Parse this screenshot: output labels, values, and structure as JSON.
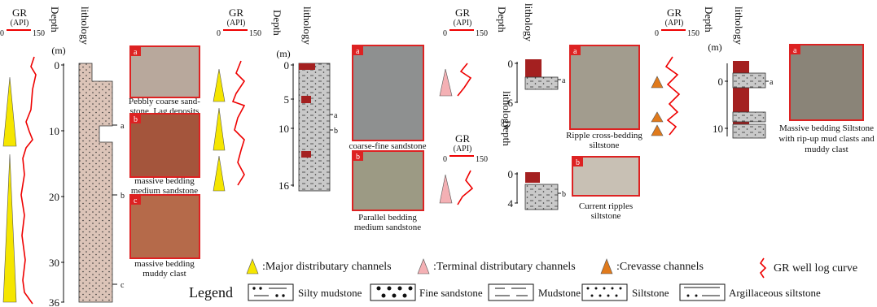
{
  "panels": [
    {
      "gr": {
        "title": "GR",
        "unit": "(API)",
        "min": "0",
        "max": "150"
      },
      "depth": {
        "title": "Depth",
        "unit": "(m)",
        "ticks": [
          "0",
          "10",
          "20",
          "30",
          "36"
        ]
      },
      "lithology": "lithology",
      "marks": [
        "a",
        "b",
        "c"
      ],
      "photos": [
        {
          "letter": "a",
          "caption": [
            "Pebbly coarse sand-",
            "stone, Lag deposits"
          ]
        },
        {
          "letter": "b",
          "caption": [
            "massive bedding",
            "medium sandstone"
          ]
        },
        {
          "letter": "c",
          "caption": [
            "massive bedding",
            "muddy clast"
          ]
        }
      ]
    },
    {
      "gr": {
        "title": "GR",
        "unit": "(API)",
        "min": "0",
        "max": "150"
      },
      "depth": {
        "title": "Depth",
        "unit": "(m)",
        "ticks": [
          "0",
          "5",
          "10",
          "16"
        ]
      },
      "lithology": "lithology",
      "marks": [
        "a",
        "b"
      ],
      "photos": [
        {
          "letter": "a",
          "caption": [
            "coarse-fine sandstone"
          ]
        },
        {
          "letter": "b",
          "caption": [
            "Parallel bedding",
            "medium sandstone"
          ]
        }
      ]
    },
    {
      "gr": {
        "title": "GR",
        "unit": "(API)",
        "min": "0",
        "max": "150"
      },
      "depth": {
        "title": "Depth",
        "ticks": [
          "0",
          "6"
        ]
      },
      "lithology": "lithology",
      "marks": [
        "a"
      ],
      "photos": [
        {
          "letter": "a",
          "caption": [
            "Ripple cross-bedding",
            "siltstone"
          ]
        }
      ]
    },
    {
      "gr": {
        "title": "GR",
        "unit": "(API)",
        "min": "0",
        "max": "150"
      },
      "depth": {
        "title": "Depth",
        "ticks": [
          "0",
          "4"
        ]
      },
      "lithology": "lithology",
      "marks": [
        "b"
      ],
      "photos": [
        {
          "letter": "b",
          "caption": [
            "Current ripples",
            "siltstone"
          ]
        }
      ]
    },
    {
      "gr": {
        "title": "GR",
        "unit": "(API)",
        "min": "0",
        "max": "150"
      },
      "depth": {
        "title": "Depth",
        "unit": "(m)",
        "ticks": [
          "0",
          "10"
        ]
      },
      "lithology": "lithology",
      "marks": [
        "a"
      ],
      "photos": [
        {
          "letter": "a",
          "caption": [
            "Massive bedding Siltstone",
            "with rip-up mud clasts and",
            "muddy clast"
          ]
        }
      ]
    }
  ],
  "legend": {
    "title": "Legend",
    "symbols": [
      ":Major distributary channels",
      ":Terminal distributary channels",
      ":Crevasse channels",
      "GR well log curve"
    ],
    "lithologies": [
      "Silty mudstone",
      "Fine sandstone",
      "Mudstone",
      "Siltstone",
      "Argillaceous siltstone"
    ]
  }
}
